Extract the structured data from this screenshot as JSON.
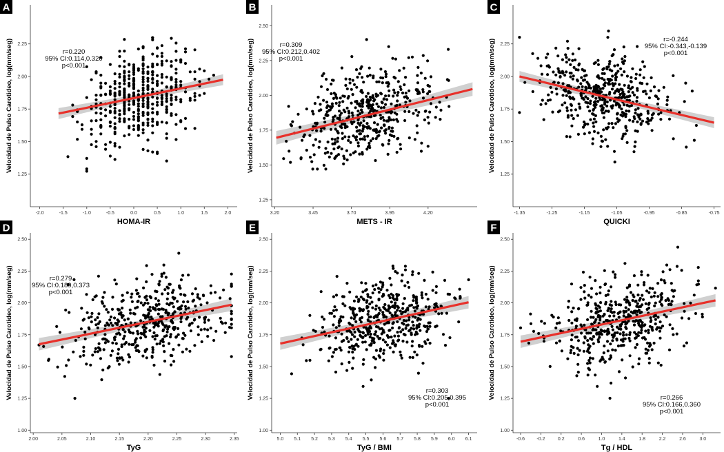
{
  "colors": {
    "point": "#000000",
    "fit_line": "#e8302a",
    "ci_band": "#c8c8c8",
    "axis": "#333333",
    "label_bg": "#000000"
  },
  "chart_data": [
    {
      "panel": "A",
      "type": "scatter",
      "xlabel": "HOMA-IR",
      "ylabel": "Velocidad de Pulso Carotideo, log(mm/seg)",
      "xlim": [
        -2.2,
        2.2
      ],
      "ylim": [
        1.0,
        2.55
      ],
      "xticks": [
        "-2.0",
        "-1.5",
        "-1.0",
        "-0.5",
        "0.0",
        "0.5",
        "1.0",
        "1.5",
        "2.0"
      ],
      "xtick_values": [
        -2.0,
        -1.5,
        -1.0,
        -0.5,
        0.0,
        0.5,
        1.0,
        1.5,
        2.0
      ],
      "yticks": [
        "1.25",
        "1.50",
        "1.75",
        "2.00",
        "2.25"
      ],
      "ytick_values": [
        1.25,
        1.5,
        1.75,
        2.0,
        2.25
      ],
      "fit": {
        "x": [
          -1.6,
          1.9
        ],
        "y": [
          1.715,
          1.975
        ],
        "ci_halfwidth": 0.03
      },
      "cloud": {
        "x_mean": 0.15,
        "x_sd": 0.6,
        "x_min": -1.6,
        "x_max": 1.9,
        "discrete_step": 0.1,
        "n": 480
      },
      "annotation": [
        "r=0.220",
        "95% CI:0.114,0.320",
        "p<0.001"
      ],
      "annotation_pos": "top-left"
    },
    {
      "panel": "B",
      "type": "scatter",
      "xlabel": "METS - IR",
      "ylabel": "Velocidad de Pulso Carotideo, log(mm/seg)",
      "xlim": [
        3.18,
        4.52
      ],
      "ylim": [
        1.2,
        2.65
      ],
      "xticks": [
        "3.20",
        "3.45",
        "3.70",
        "3.95",
        "4.20"
      ],
      "xtick_values": [
        3.2,
        3.45,
        3.7,
        3.95,
        4.2
      ],
      "yticks": [
        "1.25",
        "1.50",
        "1.75",
        "2.00",
        "2.25",
        "2.50"
      ],
      "ytick_values": [
        1.25,
        1.5,
        1.75,
        2.0,
        2.25,
        2.5
      ],
      "fit": {
        "x": [
          3.21,
          4.49
        ],
        "y": [
          1.695,
          2.045
        ],
        "ci_halfwidth": 0.035
      },
      "cloud": {
        "x_mean": 3.8,
        "x_sd": 0.22,
        "x_min": 3.22,
        "x_max": 4.49,
        "discrete_step": 0,
        "n": 480
      },
      "annotation": [
        "r=0.309",
        "95% CI:0.212,0.402",
        "p<0.001"
      ],
      "annotation_pos": "top-left"
    },
    {
      "panel": "C",
      "type": "scatter",
      "xlabel": "QUICKI",
      "ylabel": "Velocidad de Pulso Carotideo, log(mm/seg)",
      "xlim": [
        -1.37,
        -0.73
      ],
      "ylim": [
        1.0,
        2.55
      ],
      "xticks": [
        "-1.35",
        "-1.25",
        "-1.15",
        "-1.05",
        "-0.95",
        "-0.85",
        "-0.75"
      ],
      "xtick_values": [
        -1.35,
        -1.25,
        -1.15,
        -1.05,
        -0.95,
        -0.85,
        -0.75
      ],
      "yticks": [
        "1.25",
        "1.50",
        "1.75",
        "2.00",
        "2.25"
      ],
      "ytick_values": [
        1.25,
        1.5,
        1.75,
        2.0,
        2.25
      ],
      "fit": {
        "x": [
          -1.35,
          -0.75
        ],
        "y": [
          2.0,
          1.645
        ],
        "ci_halfwidth": 0.03
      },
      "cloud": {
        "x_mean": -1.1,
        "x_sd": 0.1,
        "x_min": -1.35,
        "x_max": -0.75,
        "discrete_step": 0,
        "n": 480
      },
      "annotation": [
        "r=-0.244",
        "95% CI:-0.343,-0.139",
        "p<0.001"
      ],
      "annotation_pos": "top-right"
    },
    {
      "panel": "D",
      "type": "scatter",
      "xlabel": "TyG",
      "ylabel": "Velocidad de Pulso Carotideo, log(mm/seg)",
      "xlim": [
        1.995,
        2.355
      ],
      "ylim": [
        0.98,
        2.55
      ],
      "xticks": [
        "2.00",
        "2.05",
        "2.10",
        "2.15",
        "2.20",
        "2.25",
        "2.30",
        "2.35"
      ],
      "xtick_values": [
        2.0,
        2.05,
        2.1,
        2.15,
        2.2,
        2.25,
        2.3,
        2.35
      ],
      "yticks": [
        "1.00",
        "1.25",
        "1.50",
        "1.75",
        "2.00",
        "2.25",
        "2.50"
      ],
      "ytick_values": [
        1.0,
        1.25,
        1.5,
        1.75,
        2.0,
        2.25,
        2.5
      ],
      "fit": {
        "x": [
          2.01,
          2.345
        ],
        "y": [
          1.675,
          1.985
        ],
        "ci_halfwidth": 0.035
      },
      "cloud": {
        "x_mean": 2.2,
        "x_sd": 0.07,
        "x_min": 2.01,
        "x_max": 2.345,
        "discrete_step": 0,
        "n": 480
      },
      "annotation": [
        "r=0.279",
        "95% CI:0.189,0.373",
        "p<0.001"
      ],
      "annotation_pos": "top-left"
    },
    {
      "panel": "E",
      "type": "scatter",
      "xlabel": "TyG / BMI",
      "ylabel": "Velocidad de Pulso Carotideo, log(mm/seg)",
      "xlim": [
        4.95,
        6.15
      ],
      "ylim": [
        0.98,
        2.55
      ],
      "xticks": [
        "5.0",
        "5.1",
        "5.2",
        "5.3",
        "5.4",
        "5.5",
        "5.6",
        "5.7",
        "5.8",
        "5.9",
        "6.0",
        "6.1"
      ],
      "xtick_values": [
        5.0,
        5.1,
        5.2,
        5.3,
        5.4,
        5.5,
        5.6,
        5.7,
        5.8,
        5.9,
        6.0,
        6.1
      ],
      "yticks": [
        "1.00",
        "1.25",
        "1.50",
        "1.75",
        "2.00",
        "2.25",
        "2.50"
      ],
      "ytick_values": [
        1.0,
        1.25,
        1.5,
        1.75,
        2.0,
        2.25,
        2.5
      ],
      "fit": {
        "x": [
          5.0,
          6.1
        ],
        "y": [
          1.68,
          2.005
        ],
        "ci_halfwidth": 0.035
      },
      "cloud": {
        "x_mean": 5.6,
        "x_sd": 0.2,
        "x_min": 5.0,
        "x_max": 6.1,
        "discrete_step": 0,
        "n": 480
      },
      "annotation": [
        "r=0.303",
        "95% CI:0.205,0.395",
        "p<0.001"
      ],
      "annotation_pos": "bottom-right"
    },
    {
      "panel": "F",
      "type": "scatter",
      "xlabel": "Tg / HDL",
      "ylabel": "Velocidad de Pulso Carotideo, log(mm/seg)",
      "xlim": [
        -0.75,
        3.35
      ],
      "ylim": [
        0.98,
        2.55
      ],
      "xticks": [
        "-0.6",
        "-0.2",
        "0.2",
        "0.6",
        "1.0",
        "1.4",
        "1.8",
        "2.2",
        "2.6",
        "3.0"
      ],
      "xtick_values": [
        -0.6,
        -0.2,
        0.2,
        0.6,
        1.0,
        1.4,
        1.8,
        2.2,
        2.6,
        3.0
      ],
      "yticks": [
        "1.00",
        "1.25",
        "1.50",
        "1.75",
        "2.00",
        "2.25",
        "2.50"
      ],
      "ytick_values": [
        1.0,
        1.25,
        1.5,
        1.75,
        2.0,
        2.25,
        2.5
      ],
      "fit": {
        "x": [
          -0.6,
          3.25
        ],
        "y": [
          1.695,
          2.02
        ],
        "ci_halfwidth": 0.035
      },
      "cloud": {
        "x_mean": 1.3,
        "x_sd": 0.7,
        "x_min": -0.6,
        "x_max": 3.25,
        "discrete_step": 0,
        "n": 480
      },
      "annotation": [
        "r=0.266",
        "95% CI:0.166,0.360",
        "p<0.001"
      ],
      "annotation_pos": "bottom-right"
    }
  ]
}
